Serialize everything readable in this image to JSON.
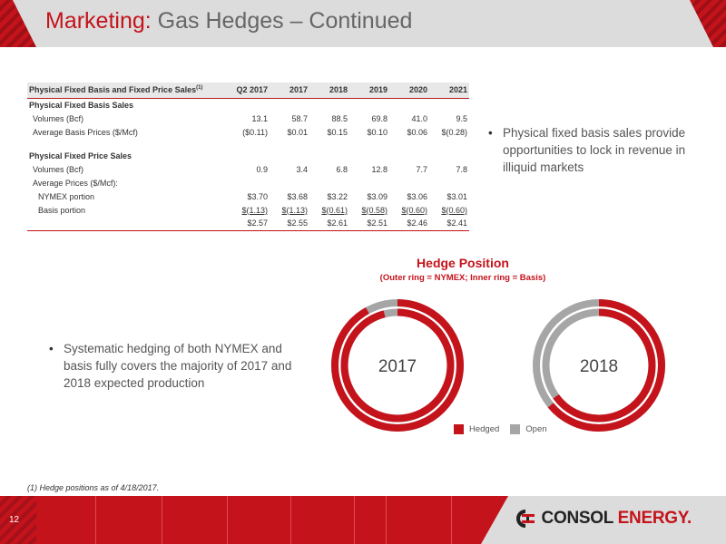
{
  "header": {
    "title_accent": "Marketing:",
    "title_rest": "Gas Hedges – Continued"
  },
  "table": {
    "header_label": "Physical Fixed Basis and Fixed Price Sales",
    "header_sup": "(1)",
    "columns": [
      "Q2 2017",
      "2017",
      "2018",
      "2019",
      "2020",
      "2021"
    ],
    "sections": [
      {
        "title": "Physical Fixed Basis Sales",
        "rows": [
          {
            "label": "Volumes (Bcf)",
            "values": [
              "13.1",
              "58.7",
              "88.5",
              "69.8",
              "41.0",
              "9.5"
            ]
          },
          {
            "label": "Average Basis Prices ($/Mcf)",
            "values": [
              "($0.11)",
              "$0.01",
              "$0.15",
              "$0.10",
              "$0.06",
              "$(0.28)"
            ]
          }
        ]
      },
      {
        "title": "Physical Fixed Price Sales",
        "rows": [
          {
            "label": "Volumes (Bcf)",
            "values": [
              "0.9",
              "3.4",
              "6.8",
              "12.8",
              "7.7",
              "7.8"
            ]
          },
          {
            "label": "Average Prices ($/Mcf):",
            "values": [
              "",
              "",
              "",
              "",
              "",
              ""
            ]
          },
          {
            "label": "NYMEX portion",
            "values": [
              "$3.70",
              "$3.68",
              "$3.22",
              "$3.09",
              "$3.06",
              "$3.01"
            ]
          },
          {
            "label": "Basis portion",
            "values": [
              "$(1.13)",
              "$(1.13)",
              "$(0.61)",
              "$(0.58)",
              "$(0.60)",
              "$(0.60)"
            ]
          },
          {
            "label": "",
            "values": [
              "$2.57",
              "$2.55",
              "$2.61",
              "$2.51",
              "$2.46",
              "$2.41"
            ]
          }
        ]
      }
    ]
  },
  "bullets": {
    "right": "Physical fixed basis sales provide opportunities to lock in revenue in illiquid markets",
    "left": "Systematic hedging of both NYMEX and basis fully covers the majority of 2017 and 2018 expected production"
  },
  "chart_data": {
    "type": "pie",
    "title": "Hedge Position",
    "subtitle": "(Outer ring = NYMEX; Inner ring = Basis)",
    "legend": [
      "Hedged",
      "Open"
    ],
    "legend_placement": "bottom",
    "colors": {
      "Hedged": "#c4131b",
      "Open": "#a6a6a6"
    },
    "charts": [
      {
        "label": "2017",
        "outer_hedged": 0.92,
        "inner_hedged": 0.96
      },
      {
        "label": "2018",
        "outer_hedged": 0.64,
        "inner_hedged": 0.65
      }
    ]
  },
  "footnote": "(1)   Hedge positions as of 4/18/2017.",
  "footer": {
    "page_number": "12",
    "logo_word1": "CONSOL",
    "logo_word2": "ENERGY",
    "logo_mark": "."
  }
}
